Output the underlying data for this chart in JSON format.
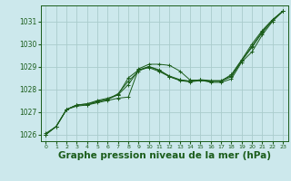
{
  "background_color": "#cce8ec",
  "grid_color": "#aacccc",
  "line_color": "#1a5c1a",
  "xlabel": "Graphe pression niveau de la mer (hPa)",
  "xlabel_fontsize": 7.5,
  "ylim": [
    1025.7,
    1031.7
  ],
  "xlim": [
    -0.5,
    23.5
  ],
  "yticks": [
    1026,
    1027,
    1028,
    1029,
    1030,
    1031
  ],
  "xticks": [
    0,
    1,
    2,
    3,
    4,
    5,
    6,
    7,
    8,
    9,
    10,
    11,
    12,
    13,
    14,
    15,
    16,
    17,
    18,
    19,
    20,
    21,
    22,
    23
  ],
  "series": [
    [
      1026.0,
      1026.35,
      1027.1,
      1027.3,
      1027.3,
      1027.4,
      1027.5,
      1027.6,
      1027.65,
      1028.9,
      1029.1,
      1029.1,
      1029.05,
      1028.8,
      1028.4,
      1028.4,
      1028.3,
      1028.3,
      1028.45,
      1029.2,
      1029.65,
      1030.4,
      1031.0,
      1031.45
    ],
    [
      1026.0,
      1026.35,
      1027.1,
      1027.3,
      1027.35,
      1027.45,
      1027.55,
      1027.75,
      1028.2,
      1028.85,
      1029.0,
      1028.85,
      1028.55,
      1028.4,
      1028.35,
      1028.4,
      1028.35,
      1028.35,
      1028.55,
      1029.25,
      1029.85,
      1030.5,
      1031.05,
      1031.45
    ],
    [
      1026.0,
      1026.35,
      1027.1,
      1027.25,
      1027.3,
      1027.45,
      1027.55,
      1027.8,
      1028.35,
      1028.8,
      1029.0,
      1028.82,
      1028.58,
      1028.42,
      1028.35,
      1028.42,
      1028.38,
      1028.38,
      1028.6,
      1029.28,
      1029.9,
      1030.55,
      1031.05,
      1031.45
    ],
    [
      1026.05,
      1026.35,
      1027.1,
      1027.3,
      1027.35,
      1027.5,
      1027.6,
      1027.75,
      1028.5,
      1028.85,
      1028.95,
      1028.78,
      1028.55,
      1028.38,
      1028.32,
      1028.38,
      1028.35,
      1028.35,
      1028.65,
      1029.3,
      1030.0,
      1030.6,
      1031.08,
      1031.45
    ]
  ]
}
